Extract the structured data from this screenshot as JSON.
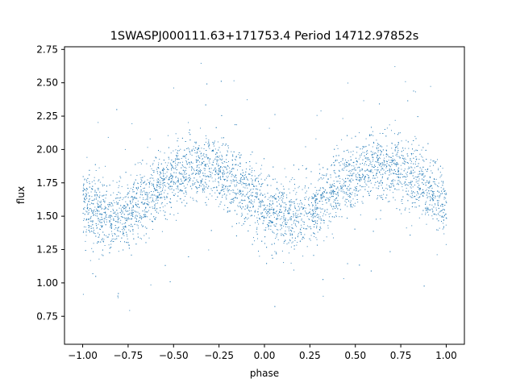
{
  "chart_data": {
    "type": "scatter",
    "title": "1SWASPJ000111.63+171753.4 Period 14712.97852s",
    "xlabel": "phase",
    "ylabel": "flux",
    "xlim": [
      -1.1,
      1.1
    ],
    "ylim": [
      0.54,
      2.77
    ],
    "x_ticks": [
      -1.0,
      -0.75,
      -0.5,
      -0.25,
      0.0,
      0.25,
      0.5,
      0.75,
      1.0
    ],
    "x_tick_labels": [
      "−1.00",
      "−0.75",
      "−0.50",
      "−0.25",
      "0.00",
      "0.25",
      "0.50",
      "0.75",
      "1.00"
    ],
    "y_ticks": [
      0.75,
      1.0,
      1.25,
      1.5,
      1.75,
      2.0,
      2.25,
      2.5,
      2.75
    ],
    "y_tick_labels": [
      "0.75",
      "1.00",
      "1.25",
      "1.50",
      "1.75",
      "2.00",
      "2.25",
      "2.50",
      "2.75"
    ],
    "grid": false,
    "legend": "none",
    "marker_color": "#1f77b4",
    "series": [
      {
        "x": [
          -1.0,
          -0.95,
          -0.9,
          -0.85,
          -0.8,
          -0.75,
          -0.7,
          -0.65,
          -0.6,
          -0.55,
          -0.5,
          -0.45,
          -0.4,
          -0.35,
          -0.3,
          -0.25,
          -0.2,
          -0.15,
          -0.1,
          -0.05,
          0.0,
          0.05,
          0.1,
          0.15,
          0.2,
          0.25,
          0.3,
          0.35,
          0.4,
          0.45,
          0.5,
          0.55,
          0.6,
          0.65,
          0.7,
          0.75,
          0.8,
          0.85,
          0.9,
          0.95,
          1.0
        ],
        "y": [
          1.6,
          1.54,
          1.51,
          1.5,
          1.51,
          1.54,
          1.59,
          1.65,
          1.71,
          1.76,
          1.8,
          1.84,
          1.86,
          1.87,
          1.86,
          1.83,
          1.79,
          1.74,
          1.68,
          1.62,
          1.56,
          1.51,
          1.49,
          1.49,
          1.51,
          1.55,
          1.6,
          1.66,
          1.72,
          1.77,
          1.81,
          1.85,
          1.87,
          1.88,
          1.87,
          1.84,
          1.8,
          1.75,
          1.69,
          1.63,
          1.59
        ],
        "spread": 0.13
      }
    ]
  }
}
